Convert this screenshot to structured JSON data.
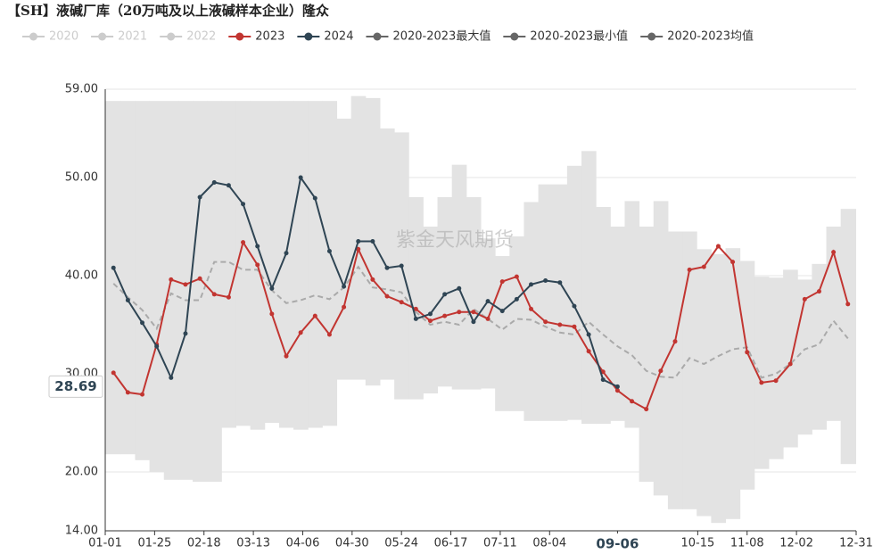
{
  "chart_data": {
    "type": "line",
    "title": "【SH】液碱厂库（20万吨及以上液碱样本企业）隆众",
    "watermark": "紫金天风期货",
    "x": [
      4,
      11,
      18,
      25,
      32,
      39,
      46,
      53,
      60,
      67,
      74,
      81,
      88,
      95,
      102,
      109,
      116,
      123,
      130,
      137,
      144,
      151,
      158,
      165,
      172,
      179,
      186,
      193,
      200,
      207,
      214,
      221,
      228,
      235,
      242,
      249,
      256,
      263,
      270,
      277,
      284,
      291,
      298,
      305,
      312,
      319,
      326,
      333,
      340,
      347,
      354,
      361
    ],
    "xlim": [
      0,
      365
    ],
    "xticks": [
      {
        "value": 0,
        "label": "01-01"
      },
      {
        "value": 24,
        "label": "01-25"
      },
      {
        "value": 48,
        "label": "02-18"
      },
      {
        "value": 72,
        "label": "03-13"
      },
      {
        "value": 96,
        "label": "04-06"
      },
      {
        "value": 120,
        "label": "04-30"
      },
      {
        "value": 144,
        "label": "05-24"
      },
      {
        "value": 168,
        "label": "06-17"
      },
      {
        "value": 192,
        "label": "07-11"
      },
      {
        "value": 216,
        "label": "08-04"
      },
      {
        "value": 249,
        "label": "09-06"
      },
      {
        "value": 288,
        "label": "10-15"
      },
      {
        "value": 312,
        "label": "11-08"
      },
      {
        "value": 336,
        "label": "12-02"
      },
      {
        "value": 365,
        "label": "12-31"
      }
    ],
    "ylim": [
      14,
      59
    ],
    "yticks": [
      {
        "value": 14,
        "label": "14.00"
      },
      {
        "value": 20,
        "label": "20.00"
      },
      {
        "value": 30,
        "label": "30.00"
      },
      {
        "value": 40,
        "label": "40.00"
      },
      {
        "value": 50,
        "label": "50.00"
      },
      {
        "value": 59,
        "label": "59.00"
      }
    ],
    "grid": true,
    "series": [
      {
        "name": "2023",
        "color": "#c23531",
        "values": [
          30.1,
          28.1,
          27.9,
          33,
          39.6,
          39.1,
          39.7,
          38.1,
          37.8,
          43.4,
          41.1,
          36.1,
          31.8,
          34.2,
          35.9,
          34.0,
          36.8,
          42.7,
          39.6,
          37.9,
          37.3,
          36.6,
          35.4,
          35.9,
          36.3,
          36.3,
          35.6,
          39.4,
          39.9,
          36.6,
          35.3,
          35.0,
          34.8,
          32.3,
          30.2,
          28.3,
          27.2,
          26.4,
          30.3,
          33.3,
          40.6,
          40.9,
          43,
          41.4,
          32.2,
          29.1,
          29.3,
          31,
          37.6,
          38.4,
          42.4,
          37.1
        ]
      },
      {
        "name": "2024",
        "color": "#2f4554",
        "values": [
          40.8,
          37.5,
          35.2,
          32.8,
          29.6,
          34.1,
          48,
          49.5,
          49.2,
          47.3,
          43,
          38.7,
          42.3,
          50,
          47.9,
          42.5,
          38.9,
          43.5,
          43.5,
          40.8,
          41,
          35.6,
          36.1,
          38.1,
          38.7,
          35.3,
          37.4,
          36.4,
          37.6,
          39.1,
          39.5,
          39.3,
          36.9,
          34,
          29.4,
          28.69,
          null,
          null,
          null,
          null,
          null,
          null,
          null,
          null,
          null,
          null,
          null,
          null,
          null,
          null,
          null,
          null
        ]
      },
      {
        "name": "2020-2023最大值",
        "color": "#666666",
        "values": [
          57.8,
          57.8,
          57.8,
          57.8,
          57.8,
          57.8,
          57.8,
          57.8,
          57.8,
          57.8,
          57.8,
          57.8,
          57.8,
          57.8,
          57.8,
          57.8,
          56,
          58.3,
          58.1,
          55,
          54.6,
          48,
          45,
          48,
          51.3,
          48,
          43.8,
          42,
          44,
          47.5,
          49.3,
          49.3,
          51.2,
          52.7,
          47,
          45,
          47.6,
          45,
          47.6,
          44.5,
          44.5,
          42.7,
          42.2,
          42.8,
          41.5,
          39.9,
          39.8,
          40.6,
          39.6,
          41.2,
          45,
          46.8
        ]
      },
      {
        "name": "2020-2023最小值",
        "color": "#666666",
        "values": [
          21.8,
          21.8,
          21.2,
          20,
          19.2,
          19.2,
          19,
          19,
          24.5,
          24.7,
          24.3,
          25,
          24.5,
          24.3,
          24.5,
          24.7,
          29.4,
          29.4,
          28.8,
          29.4,
          27.4,
          27.4,
          28,
          28.7,
          28.4,
          28.4,
          28.5,
          26.2,
          26.2,
          25.2,
          25.2,
          25.2,
          25.3,
          24.9,
          24.9,
          25.2,
          24.5,
          19,
          17.6,
          16.2,
          16.2,
          15.5,
          14.8,
          15.2,
          18.2,
          20.3,
          21.3,
          22.5,
          23.8,
          24.3,
          25.2,
          20.8
        ]
      },
      {
        "name": "2020-2023均值",
        "color": "#666666",
        "values": [
          39.2,
          37.8,
          36.5,
          34.6,
          38.2,
          37.5,
          37.5,
          41.4,
          41.4,
          40.6,
          40.6,
          38.5,
          37.2,
          37.5,
          38,
          37.6,
          38.8,
          40.9,
          38.8,
          38.6,
          38.3,
          36.3,
          35,
          35.3,
          35,
          36.6,
          35.6,
          34.5,
          35.6,
          35.5,
          34.8,
          34.2,
          34,
          35.3,
          34,
          32.8,
          31.9,
          30.3,
          29.7,
          29.6,
          31.6,
          31,
          31.8,
          32.5,
          32.7,
          29.6,
          30,
          31,
          32.5,
          33,
          35.4,
          33.6
        ]
      }
    ],
    "inactive_series": [
      {
        "name": "2020",
        "color": "#cccccc"
      },
      {
        "name": "2021",
        "color": "#cccccc"
      },
      {
        "name": "2022",
        "color": "#cccccc"
      }
    ]
  }
}
